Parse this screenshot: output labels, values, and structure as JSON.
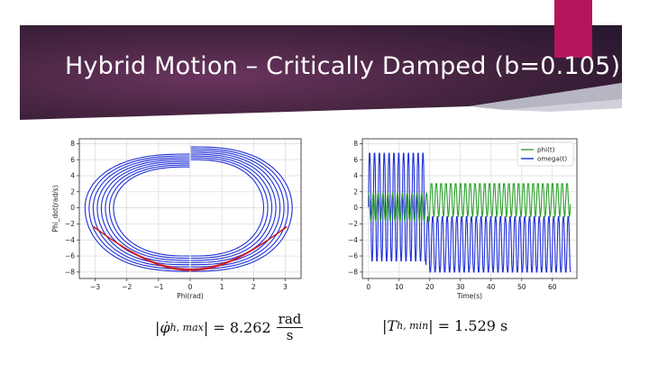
{
  "slide": {
    "title": "Hybrid Motion – Critically Damped (b=0.105)",
    "colors": {
      "banner": "#3b1f3d",
      "accent": "#b5165b"
    }
  },
  "equations": {
    "left": {
      "lhs_symbol": "φ̇",
      "lhs_sub": "h, max",
      "equals": "= 8.262",
      "unit_num": "rad",
      "unit_den": "s"
    },
    "right": {
      "lhs_symbol": "T",
      "lhs_sub": "h, min",
      "equals": "= 1.529 s"
    }
  },
  "chart_data": [
    {
      "type": "line",
      "xlabel": "Phi(rad)",
      "ylabel": "Phi_dot(rad/s)",
      "xlim": [
        -3.5,
        3.5
      ],
      "ylim": [
        -8.8,
        8.6
      ],
      "xticks": [
        -3,
        -2,
        -1,
        0,
        1,
        2,
        3
      ],
      "yticks": [
        -8,
        -6,
        -4,
        -2,
        0,
        2,
        4,
        6,
        8
      ],
      "grid": true,
      "series": [
        {
          "color": "#1f2fd6",
          "kind": "phase-loops",
          "loops": 8
        },
        {
          "color": "#d11a1a",
          "kind": "phase-lower-arc"
        }
      ]
    },
    {
      "type": "line",
      "xlabel": "Time(s)",
      "ylabel": "",
      "xlim": [
        -2,
        68
      ],
      "ylim": [
        -8.8,
        8.6
      ],
      "xticks": [
        0,
        10,
        20,
        30,
        40,
        50,
        60
      ],
      "yticks": [
        -8,
        -6,
        -4,
        -2,
        0,
        2,
        4,
        6,
        8
      ],
      "grid": true,
      "legend": "top-right",
      "series": [
        {
          "name": "phi(t)",
          "color": "#2ca02c",
          "x_end": 66,
          "phase1_end": 20,
          "amp_phase1": 2.0,
          "amp_phase2": 3.0,
          "center_phase2": 0.8,
          "period": 1.58
        },
        {
          "name": "omega(t)",
          "color": "#1f2fd6",
          "x_end": 66,
          "phase1_end": 18.8,
          "amp_phase1_max": 7.0,
          "amp_phase1_min": -6.8,
          "amp_phase2_max": -1.0,
          "amp_phase2_min": -8.1,
          "period": 1.58
        }
      ]
    }
  ]
}
